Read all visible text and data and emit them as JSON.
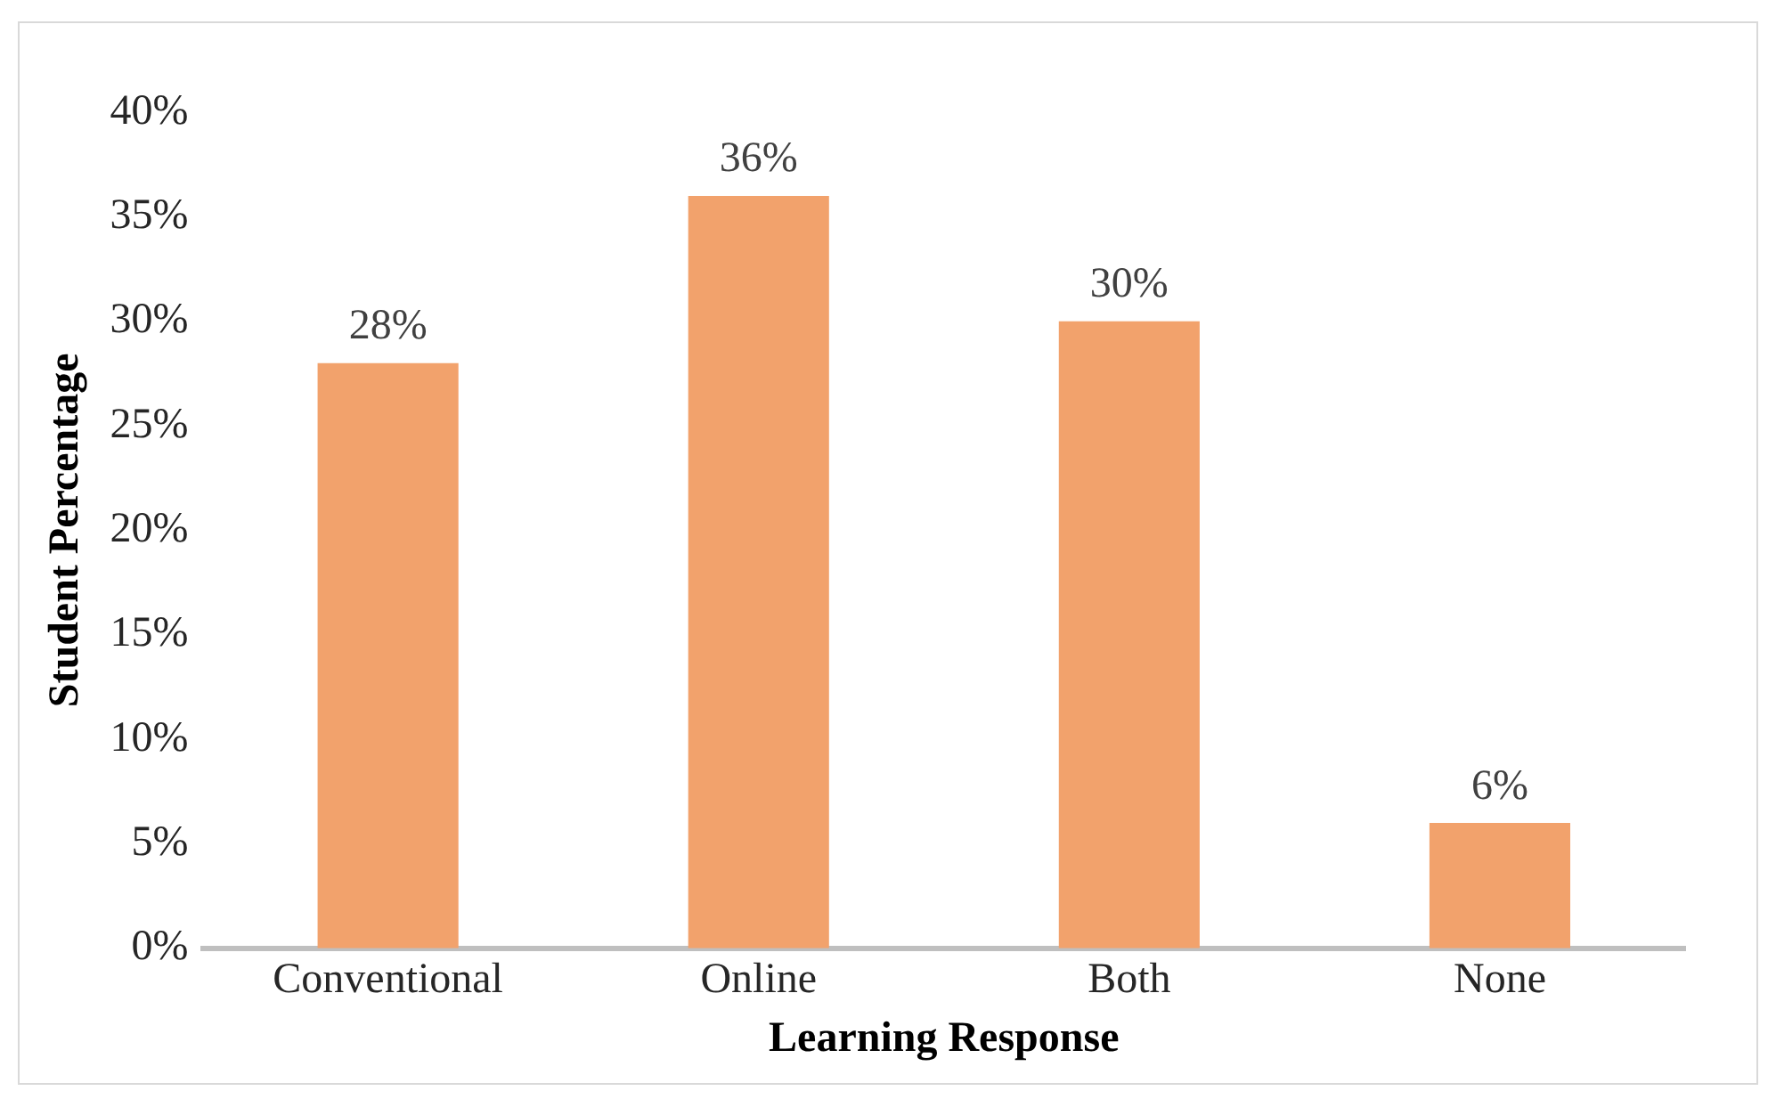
{
  "chart_data": {
    "type": "bar",
    "xlabel": "Learning Response",
    "ylabel": "Student Percentage",
    "categories": [
      "Conventional",
      "Online",
      "Both",
      "None"
    ],
    "values": [
      28,
      36,
      30,
      6
    ],
    "color": "#f2a26c",
    "ylim": [
      0,
      40
    ],
    "yticks": [
      {
        "value": 0,
        "label": "0%"
      },
      {
        "value": 5,
        "label": "5%"
      },
      {
        "value": 10,
        "label": "10%"
      },
      {
        "value": 15,
        "label": "15%"
      },
      {
        "value": 20,
        "label": "20%"
      },
      {
        "value": 25,
        "label": "25%"
      },
      {
        "value": 30,
        "label": "30%"
      },
      {
        "value": 35,
        "label": "35%"
      },
      {
        "value": 40,
        "label": "40%"
      }
    ],
    "value_labels": [
      "28%",
      "36%",
      "30%",
      "6%"
    ],
    "grid": false,
    "legend": false
  }
}
